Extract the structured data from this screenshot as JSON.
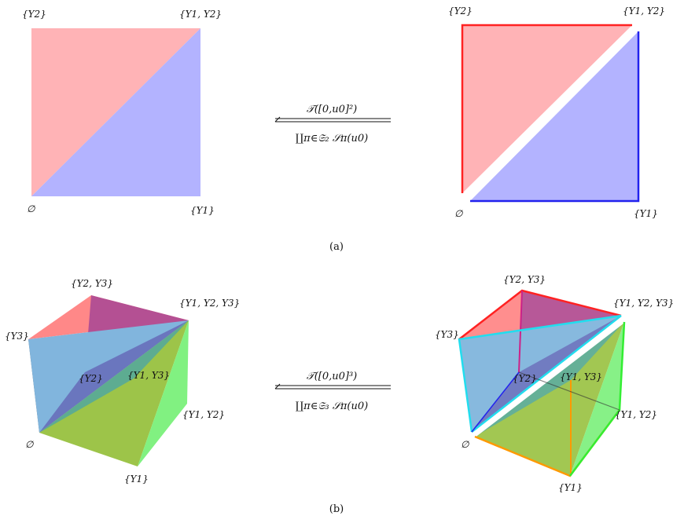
{
  "panel_a": {
    "left": {
      "label_top_left": "{Y2}",
      "label_top_right": "{Y1, Y2}",
      "label_bottom_left": "∅",
      "label_bottom_right": "{Y1}"
    },
    "arrow": {
      "top": "𝒯([0,u0]²)",
      "bottom": "∐π∈𝔖₂ 𝒮π(u0)"
    },
    "right": {
      "label_top_left": "{Y2}",
      "label_top_right": "{Y1, Y2}",
      "label_bottom_left": "∅",
      "label_bottom_right": "{Y1}"
    },
    "caption": "(a)"
  },
  "panel_b": {
    "left": {
      "label_y2y3": "{Y2, Y3}",
      "label_y1y2y3": "{Y1, Y2, Y3}",
      "label_y3": "{Y3}",
      "label_y2": "{Y2}",
      "label_y1y3": "{Y1, Y3}",
      "label_y1y2": "{Y1, Y2}",
      "label_empty": "∅",
      "label_y1": "{Y1}"
    },
    "arrow": {
      "top": "𝒯([0,u0]³)",
      "bottom": "∐π∈𝔖₃ 𝒮π(u0)"
    },
    "right": {
      "label_y2y3": "{Y2, Y3}",
      "label_y1y2y3": "{Y1, Y2, Y3}",
      "label_y3": "{Y3}",
      "label_y2": "{Y2}",
      "label_y1y3": "{Y1, Y3}",
      "label_y1y2": "{Y1, Y2}",
      "label_empty": "∅",
      "label_y1": "{Y1}"
    },
    "caption": "(b)"
  },
  "colors": {
    "pink": "#ffb3b6",
    "lavender": "#b3b3ff",
    "red": "#ff2222",
    "blue": "#2222ee",
    "green": "#33ee33",
    "orange": "#ff9900",
    "cyan": "#22ddee",
    "magenta": "#cc2288",
    "gray": "#666666"
  }
}
